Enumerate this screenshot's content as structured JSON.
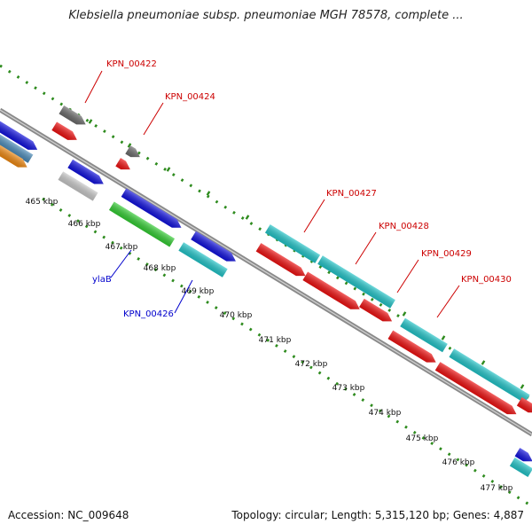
{
  "title": "Klebsiella pneumoniae subsp. pneumoniae MGH 78578, complete ...",
  "footer": {
    "accession": "Accession: NC_009648",
    "summary": "Topology: circular; Length: 5,315,120 bp; Genes: 4,887"
  },
  "colors": {
    "backbone": "#8a8a8a",
    "ruler_dots": "#2e8b1e",
    "label_red": "#cc0000",
    "label_blue": "#0000cc",
    "gene_red": "#ee1111",
    "gene_blue": "#1111dd",
    "gene_cyan": "#22c4c8",
    "gene_gray": "#6a6a6a",
    "gene_lightgray": "#c8c8c8",
    "gene_green": "#33cc33",
    "gene_orange": "#ee8811",
    "gene_steel": "#4a8ab8"
  },
  "ticks": [
    "465 kbp",
    "466 kbp",
    "467 kbp",
    "468 kbp",
    "469 kbp",
    "470 kbp",
    "471 kbp",
    "472 kbp",
    "473 kbp",
    "474 kbp",
    "475 kbp",
    "476 kbp",
    "477 kbp"
  ],
  "gene_labels": [
    {
      "text": "KPN_00422",
      "color": "red"
    },
    {
      "text": "KPN_00424",
      "color": "red"
    },
    {
      "text": "KPN_00427",
      "color": "red"
    },
    {
      "text": "KPN_00428",
      "color": "red"
    },
    {
      "text": "KPN_00429",
      "color": "red"
    },
    {
      "text": "KPN_00430",
      "color": "red"
    },
    {
      "text": "ylaB",
      "color": "blue"
    },
    {
      "text": "KPN_00426",
      "color": "blue"
    }
  ]
}
